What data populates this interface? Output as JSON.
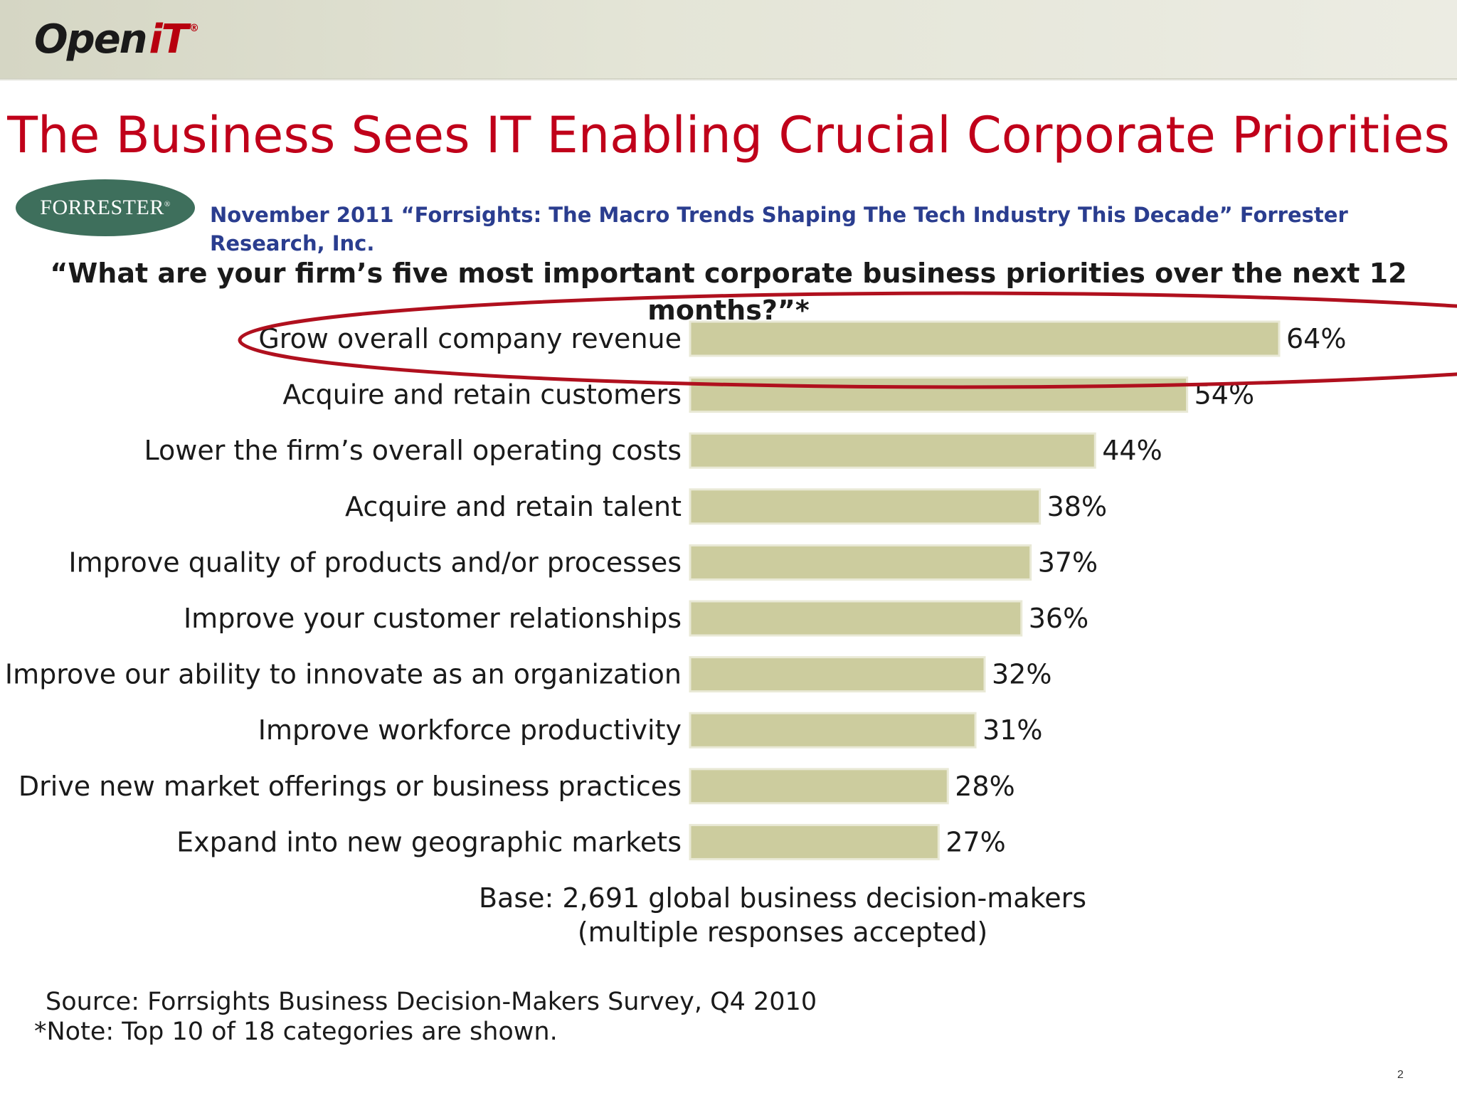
{
  "header": {
    "logo_text": "Open",
    "logo_accent": "iT",
    "logo_mark": "®"
  },
  "slide": {
    "title": "The Business Sees IT Enabling Crucial Corporate Priorities",
    "badge_text": "FORRESTER",
    "badge_mark": "®",
    "citation": "November 2011 “Forrsights: The Macro Trends Shaping The Tech Industry This Decade” Forrester Research, Inc.",
    "page_number": "2"
  },
  "colors": {
    "title": "#c0001a",
    "citation": "#2a3d8f",
    "bar_fill": "#cccc9e",
    "bar_edge": "#e9e9d6",
    "highlight_ring": "#b0101e",
    "badge": "#3e6f5c"
  },
  "chart_data": {
    "type": "bar",
    "orientation": "horizontal",
    "title": "“What are your firm’s five most important corporate business priorities over the next 12 months?”*",
    "categories": [
      "Grow overall company revenue",
      "Acquire and retain customers",
      "Lower the firm’s overall operating costs",
      "Acquire and retain talent",
      "Improve quality of products and/or processes",
      "Improve your customer relationships",
      "Improve our ability to innovate as an organization",
      "Improve workforce productivity",
      "Drive new market offerings or business practices",
      "Expand into new geographic markets"
    ],
    "values": [
      64,
      54,
      44,
      38,
      37,
      36,
      32,
      31,
      28,
      27
    ],
    "value_labels": [
      "64%",
      "54%",
      "44%",
      "38%",
      "37%",
      "36%",
      "32%",
      "31%",
      "28%",
      "27%"
    ],
    "xlim": [
      0,
      64
    ],
    "highlighted_category": "Grow overall company revenue",
    "base_note_line1": "Base: 2,691 global business decision-makers",
    "base_note_line2": "(multiple responses accepted)",
    "source": "Source: Forrsights Business Decision-Makers Survey, Q4 2010",
    "note": "*Note: Top 10 of 18 categories are shown."
  }
}
